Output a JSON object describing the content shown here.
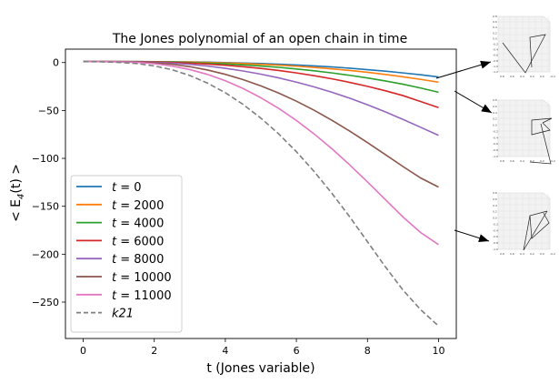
{
  "chart_data": {
    "type": "line",
    "title": "The Jones polynomial of an open chain in time",
    "xlabel": "t (Jones variable)",
    "ylabel": "< E_4(t) >",
    "ylabel_base": "< E",
    "ylabel_sub": "4",
    "ylabel_tail": "(t) >",
    "xlim": [
      -0.5,
      10.5
    ],
    "ylim": [
      -288,
      14
    ],
    "x_ticks": [
      0,
      2,
      4,
      6,
      8,
      10
    ],
    "y_ticks": [
      0,
      -50,
      -100,
      -150,
      -200,
      -250
    ],
    "x_tick_labels": [
      "0",
      "2",
      "4",
      "6",
      "8",
      "10"
    ],
    "y_tick_labels": [
      "0",
      "−50",
      "−100",
      "−150",
      "−200",
      "−250"
    ],
    "grid": false,
    "legend_position": "lower-left",
    "x": [
      0,
      0.5,
      1,
      1.5,
      2,
      2.5,
      3,
      3.5,
      4,
      4.5,
      5,
      5.5,
      6,
      6.5,
      7,
      7.5,
      8,
      8.5,
      9,
      9.5,
      10
    ],
    "series": [
      {
        "name": "t = 0",
        "legend_var": "t",
        "legend_val": "0",
        "color": "#1f77b4",
        "dash": "solid",
        "values": [
          1,
          1,
          1,
          1,
          0.9,
          0.8,
          0.6,
          0.4,
          0,
          -0.5,
          -1,
          -1.7,
          -2.5,
          -3.5,
          -4.6,
          -5.9,
          -7.4,
          -9,
          -10.8,
          -12.8,
          -15
        ]
      },
      {
        "name": "t = 2000",
        "legend_var": "t",
        "legend_val": "2000",
        "color": "#ff7f0e",
        "dash": "solid",
        "values": [
          1,
          1,
          1,
          1,
          0.9,
          0.7,
          0.5,
          0.1,
          -0.4,
          -1,
          -1.8,
          -2.7,
          -3.8,
          -5.1,
          -6.6,
          -8.3,
          -10.2,
          -12.4,
          -14.9,
          -17.6,
          -20.5
        ]
      },
      {
        "name": "t = 4000",
        "legend_var": "t",
        "legend_val": "4000",
        "color": "#2ca02c",
        "dash": "solid",
        "values": [
          1,
          1,
          1,
          1,
          0.8,
          0.5,
          0,
          -0.6,
          -1.4,
          -2.4,
          -3.6,
          -5,
          -6.7,
          -8.6,
          -10.8,
          -13.3,
          -16.1,
          -19.2,
          -22.6,
          -26.6,
          -31
        ]
      },
      {
        "name": "t = 6000",
        "legend_var": "t",
        "legend_val": "6000",
        "color": "#d62728",
        "dash": "solid",
        "values": [
          1,
          1,
          1,
          0.9,
          0.6,
          0.1,
          -0.6,
          -1.6,
          -2.8,
          -4.3,
          -6.1,
          -8.3,
          -10.8,
          -13.7,
          -17,
          -20.7,
          -24.8,
          -29.4,
          -34.5,
          -40.7,
          -47
        ]
      },
      {
        "name": "t = 8000",
        "legend_var": "t",
        "legend_val": "8000",
        "color": "#9467bd",
        "dash": "solid",
        "values": [
          1,
          1,
          1,
          0.8,
          0.3,
          -0.6,
          -1.9,
          -3.7,
          -6,
          -8.8,
          -12.1,
          -16,
          -20.4,
          -25.4,
          -31,
          -37.2,
          -44,
          -51.4,
          -59.4,
          -67.6,
          -76
        ]
      },
      {
        "name": "t = 10000",
        "legend_var": "t",
        "legend_val": "10000",
        "color": "#8c564b",
        "dash": "solid",
        "values": [
          1,
          1,
          0.9,
          0.6,
          -0.2,
          -1.8,
          -4.3,
          -7.8,
          -12.3,
          -17.8,
          -24.3,
          -31.8,
          -40.3,
          -49.8,
          -60.3,
          -71.5,
          -83.5,
          -96,
          -108.5,
          -120.5,
          -130
        ]
      },
      {
        "name": "t = 11000",
        "legend_var": "t",
        "legend_val": "11000",
        "color": "#e377c2",
        "dash": "solid",
        "values": [
          1,
          1,
          0.8,
          0.2,
          -1.2,
          -3.6,
          -7.3,
          -12.4,
          -19,
          -27.1,
          -36.7,
          -47.8,
          -60.4,
          -74.5,
          -90,
          -106.8,
          -124.6,
          -142.9,
          -161.2,
          -177.5,
          -190
        ]
      },
      {
        "name": "k21",
        "legend_var": "k21",
        "legend_val": "",
        "color": "#7f7f7f",
        "dash": "dashed",
        "values": [
          1,
          0.8,
          0.2,
          -1,
          -3.5,
          -7.5,
          -13.5,
          -21.5,
          -31.5,
          -43.7,
          -58,
          -74.4,
          -93,
          -113.7,
          -136.5,
          -161,
          -187,
          -213,
          -237.5,
          -258,
          -275
        ]
      }
    ]
  },
  "insets": [
    {
      "ytick_labels": [
        "0.8",
        "0.6",
        "0.4",
        "0.2",
        "0.0",
        "-0.2",
        "-0.4",
        "-0.6",
        "-0.8",
        "-1.0",
        "-1.2"
      ],
      "xtick_labels": [
        "0.8",
        "0.6",
        "0.4",
        "0.2",
        "0.0",
        "-0.2"
      ]
    },
    {
      "ytick_labels": [
        "0.8",
        "0.6",
        "0.4",
        "0.2",
        "0.0",
        "-0.2",
        "-0.4",
        "-0.6",
        "-0.8",
        "-1.0"
      ],
      "xtick_labels": [
        "0.8",
        "0.6",
        "0.4",
        "0.2",
        "0.0",
        "-0.2"
      ]
    },
    {
      "ytick_labels": [
        "0.8",
        "0.6",
        "0.4",
        "0.2",
        "0.0",
        "-0.2",
        "-0.4",
        "-0.6",
        "-0.8",
        "-1.0"
      ],
      "xtick_labels": [
        "0.8",
        "0.6",
        "0.4",
        "0.2",
        "0.0",
        "-0.2"
      ]
    }
  ]
}
